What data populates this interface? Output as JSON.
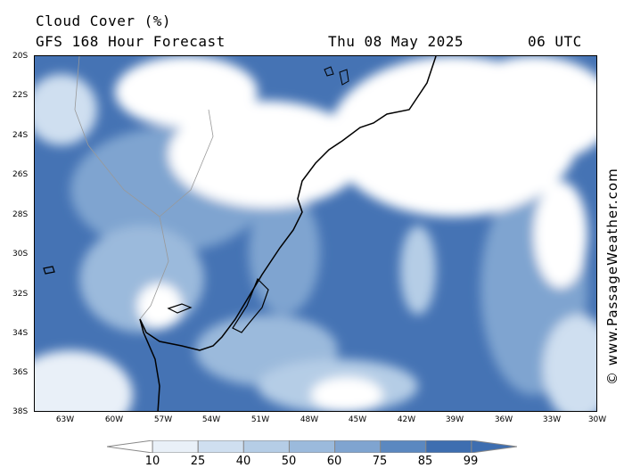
{
  "header": {
    "title": "Cloud Cover (%)",
    "subtitle": "GFS 168 Hour Forecast",
    "date": "Thu 08 May 2025",
    "time": "06 UTC"
  },
  "credit": "© www.PassageWeather.com",
  "map": {
    "lat_labels": [
      "20S",
      "22S",
      "24S",
      "26S",
      "28S",
      "30S",
      "32S",
      "34S",
      "36S",
      "38S"
    ],
    "lon_labels": [
      "63W",
      "60W",
      "57W",
      "54W",
      "51W",
      "48W",
      "45W",
      "42W",
      "39W",
      "36W",
      "33W",
      "30W"
    ]
  },
  "legend": {
    "values": [
      "10",
      "25",
      "40",
      "50",
      "60",
      "75",
      "85",
      "99"
    ],
    "colors": [
      "#ffffff",
      "#e9f0f8",
      "#cfdff0",
      "#b5cde6",
      "#9bbadc",
      "#7fa4d0",
      "#5b88c0",
      "#3e6eb0"
    ]
  }
}
